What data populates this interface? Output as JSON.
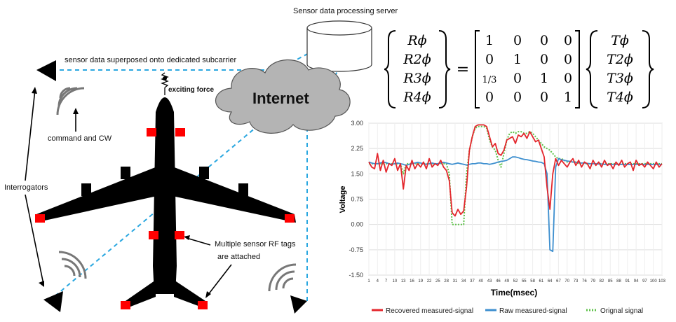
{
  "labels": {
    "server": "Sensor data processing server",
    "superposed": "sensor data superposed onto dedicated subcarrier",
    "exciting": "exciting force",
    "internet": "Internet",
    "command": "command and CW",
    "interrogators": "Interrogators",
    "tags_line1": "Multiple sensor RF tags",
    "tags_line2": "are attached"
  },
  "equation": {
    "lhs": [
      "Rϕ",
      "R2ϕ",
      "R3ϕ",
      "R4ϕ"
    ],
    "matrix": [
      [
        "1",
        "0",
        "0",
        "0"
      ],
      [
        "0",
        "1",
        "0",
        "0"
      ],
      [
        "1/3",
        "0",
        "1",
        "0"
      ],
      [
        "0",
        "0",
        "0",
        "1"
      ]
    ],
    "rhs": [
      "Tϕ",
      "T2ϕ",
      "T3ϕ",
      "T4ϕ"
    ],
    "equals": "="
  },
  "colors": {
    "tag": "#ff0000",
    "dashed_link": "#2aa7e0",
    "aircraft": "#000000",
    "cloud": "#b4b4b4",
    "recovered": "#e4262c",
    "raw": "#3d8fcf",
    "original": "#5ec24a"
  },
  "chart_data": {
    "type": "line",
    "xlabel": "Time(msec)",
    "ylabel": "Voltage",
    "ylim": [
      -1.5,
      3.0
    ],
    "y_ticks": [
      "3.00",
      "2.25",
      "1.50",
      "0.75",
      "0.00",
      "-0.75",
      "-1.50"
    ],
    "x_ticks": [
      "1",
      "4",
      "7",
      "10",
      "13",
      "16",
      "19",
      "22",
      "25",
      "28",
      "31",
      "34",
      "37",
      "40",
      "43",
      "46",
      "49",
      "52",
      "55",
      "58",
      "61",
      "64",
      "67",
      "70",
      "73",
      "76",
      "79",
      "82",
      "85",
      "88",
      "91",
      "94",
      "97",
      "100",
      "103"
    ],
    "grid": true,
    "legend": "bottom",
    "x": [
      1,
      2,
      3,
      4,
      5,
      6,
      7,
      8,
      9,
      10,
      11,
      12,
      13,
      14,
      15,
      16,
      17,
      18,
      19,
      20,
      21,
      22,
      23,
      24,
      25,
      26,
      27,
      28,
      29,
      30,
      31,
      32,
      33,
      34,
      35,
      36,
      37,
      38,
      39,
      40,
      41,
      42,
      43,
      44,
      45,
      46,
      47,
      48,
      49,
      50,
      51,
      52,
      53,
      54,
      55,
      56,
      57,
      58,
      59,
      60,
      61,
      62,
      63,
      64,
      65,
      66,
      67,
      68,
      69,
      70,
      71,
      72,
      73,
      74,
      75,
      76,
      77,
      78,
      79,
      80,
      81,
      82,
      83,
      84,
      85,
      86,
      87,
      88,
      89,
      90,
      91,
      92,
      93,
      94,
      95,
      96,
      97,
      98,
      99,
      100,
      101,
      102,
      103
    ],
    "series": [
      {
        "name": "Recovered measured-signal",
        "color": "#e4262c",
        "style": "solid",
        "values": [
          1.85,
          1.7,
          1.65,
          2.1,
          1.6,
          1.9,
          1.55,
          1.8,
          1.75,
          1.95,
          1.6,
          1.8,
          1.05,
          1.75,
          1.6,
          1.9,
          1.65,
          1.8,
          1.7,
          1.85,
          1.65,
          1.95,
          1.7,
          1.8,
          1.75,
          1.9,
          1.7,
          1.6,
          1.3,
          0.35,
          0.25,
          0.45,
          0.3,
          0.4,
          1.1,
          2.2,
          2.6,
          2.9,
          2.95,
          2.95,
          2.95,
          2.9,
          2.6,
          2.3,
          2.4,
          2.1,
          2.05,
          2.2,
          2.5,
          2.55,
          2.6,
          2.4,
          2.65,
          2.6,
          2.7,
          2.55,
          2.75,
          2.6,
          2.45,
          2.5,
          2.25,
          2.0,
          1.1,
          0.45,
          1.5,
          1.95,
          1.75,
          1.9,
          1.8,
          1.7,
          1.85,
          1.95,
          1.75,
          1.9,
          1.7,
          1.85,
          1.8,
          1.65,
          1.9,
          1.75,
          1.85,
          1.7,
          1.9,
          1.75,
          1.8,
          1.65,
          1.85,
          1.75,
          1.9,
          1.7,
          1.8,
          1.85,
          1.6,
          1.9,
          1.75,
          1.8,
          1.7,
          1.85,
          1.75,
          1.65,
          1.85,
          1.7,
          1.8
        ]
      },
      {
        "name": "Raw measured-signal",
        "color": "#3d8fcf",
        "style": "solid",
        "values": [
          1.85,
          1.82,
          1.8,
          1.8,
          1.82,
          1.85,
          1.83,
          1.8,
          1.78,
          1.8,
          1.82,
          1.8,
          1.78,
          1.75,
          1.78,
          1.8,
          1.82,
          1.84,
          1.82,
          1.8,
          1.78,
          1.8,
          1.82,
          1.8,
          1.8,
          1.82,
          1.84,
          1.82,
          1.8,
          1.78,
          1.8,
          1.82,
          1.8,
          1.78,
          1.76,
          1.78,
          1.8,
          1.8,
          1.82,
          1.82,
          1.8,
          1.8,
          1.78,
          1.8,
          1.82,
          1.85,
          1.87,
          1.88,
          1.9,
          1.95,
          2.0,
          2.0,
          1.98,
          1.95,
          1.93,
          1.92,
          1.9,
          1.88,
          1.87,
          1.85,
          1.84,
          1.8,
          1.5,
          -0.75,
          -0.8,
          1.7,
          1.95,
          1.92,
          1.9,
          1.88,
          1.87,
          1.85,
          1.84,
          1.83,
          1.82,
          1.82,
          1.81,
          1.8,
          1.8,
          1.8,
          1.79,
          1.79,
          1.78,
          1.78,
          1.78,
          1.78,
          1.78,
          1.78,
          1.78,
          1.78,
          1.78,
          1.78,
          1.78,
          1.78,
          1.78,
          1.78,
          1.78,
          1.78,
          1.78,
          1.78,
          1.78,
          1.78,
          1.78
        ]
      },
      {
        "name": "Orignal signal",
        "color": "#5ec24a",
        "style": "dotted",
        "values": [
          1.8,
          1.8,
          1.8,
          1.8,
          1.8,
          1.8,
          1.8,
          1.8,
          1.8,
          1.8,
          1.8,
          1.8,
          1.5,
          1.8,
          1.8,
          1.8,
          1.8,
          1.8,
          1.8,
          1.8,
          1.8,
          1.8,
          1.8,
          1.8,
          1.8,
          1.8,
          1.8,
          1.8,
          1.5,
          0.0,
          0.0,
          0.0,
          0.0,
          0.0,
          1.5,
          2.2,
          2.6,
          2.85,
          2.9,
          2.9,
          2.9,
          2.85,
          2.5,
          2.3,
          2.2,
          1.9,
          1.7,
          2.1,
          2.5,
          2.7,
          2.75,
          2.7,
          2.75,
          2.75,
          2.7,
          2.7,
          2.75,
          2.7,
          2.6,
          2.5,
          2.4,
          2.3,
          2.25,
          2.2,
          2.1,
          2.0,
          1.95,
          1.95,
          1.9,
          1.85,
          1.85,
          1.85,
          1.85,
          1.8,
          1.8,
          1.8,
          1.8,
          1.8,
          1.8,
          1.8,
          1.8,
          1.8,
          1.8,
          1.8,
          1.8,
          1.8,
          1.8,
          1.8,
          1.8,
          1.8,
          1.8,
          1.8,
          1.8,
          1.8,
          1.8,
          1.8,
          1.8,
          1.8,
          1.8,
          1.8,
          1.8,
          1.8,
          1.8
        ]
      }
    ]
  }
}
